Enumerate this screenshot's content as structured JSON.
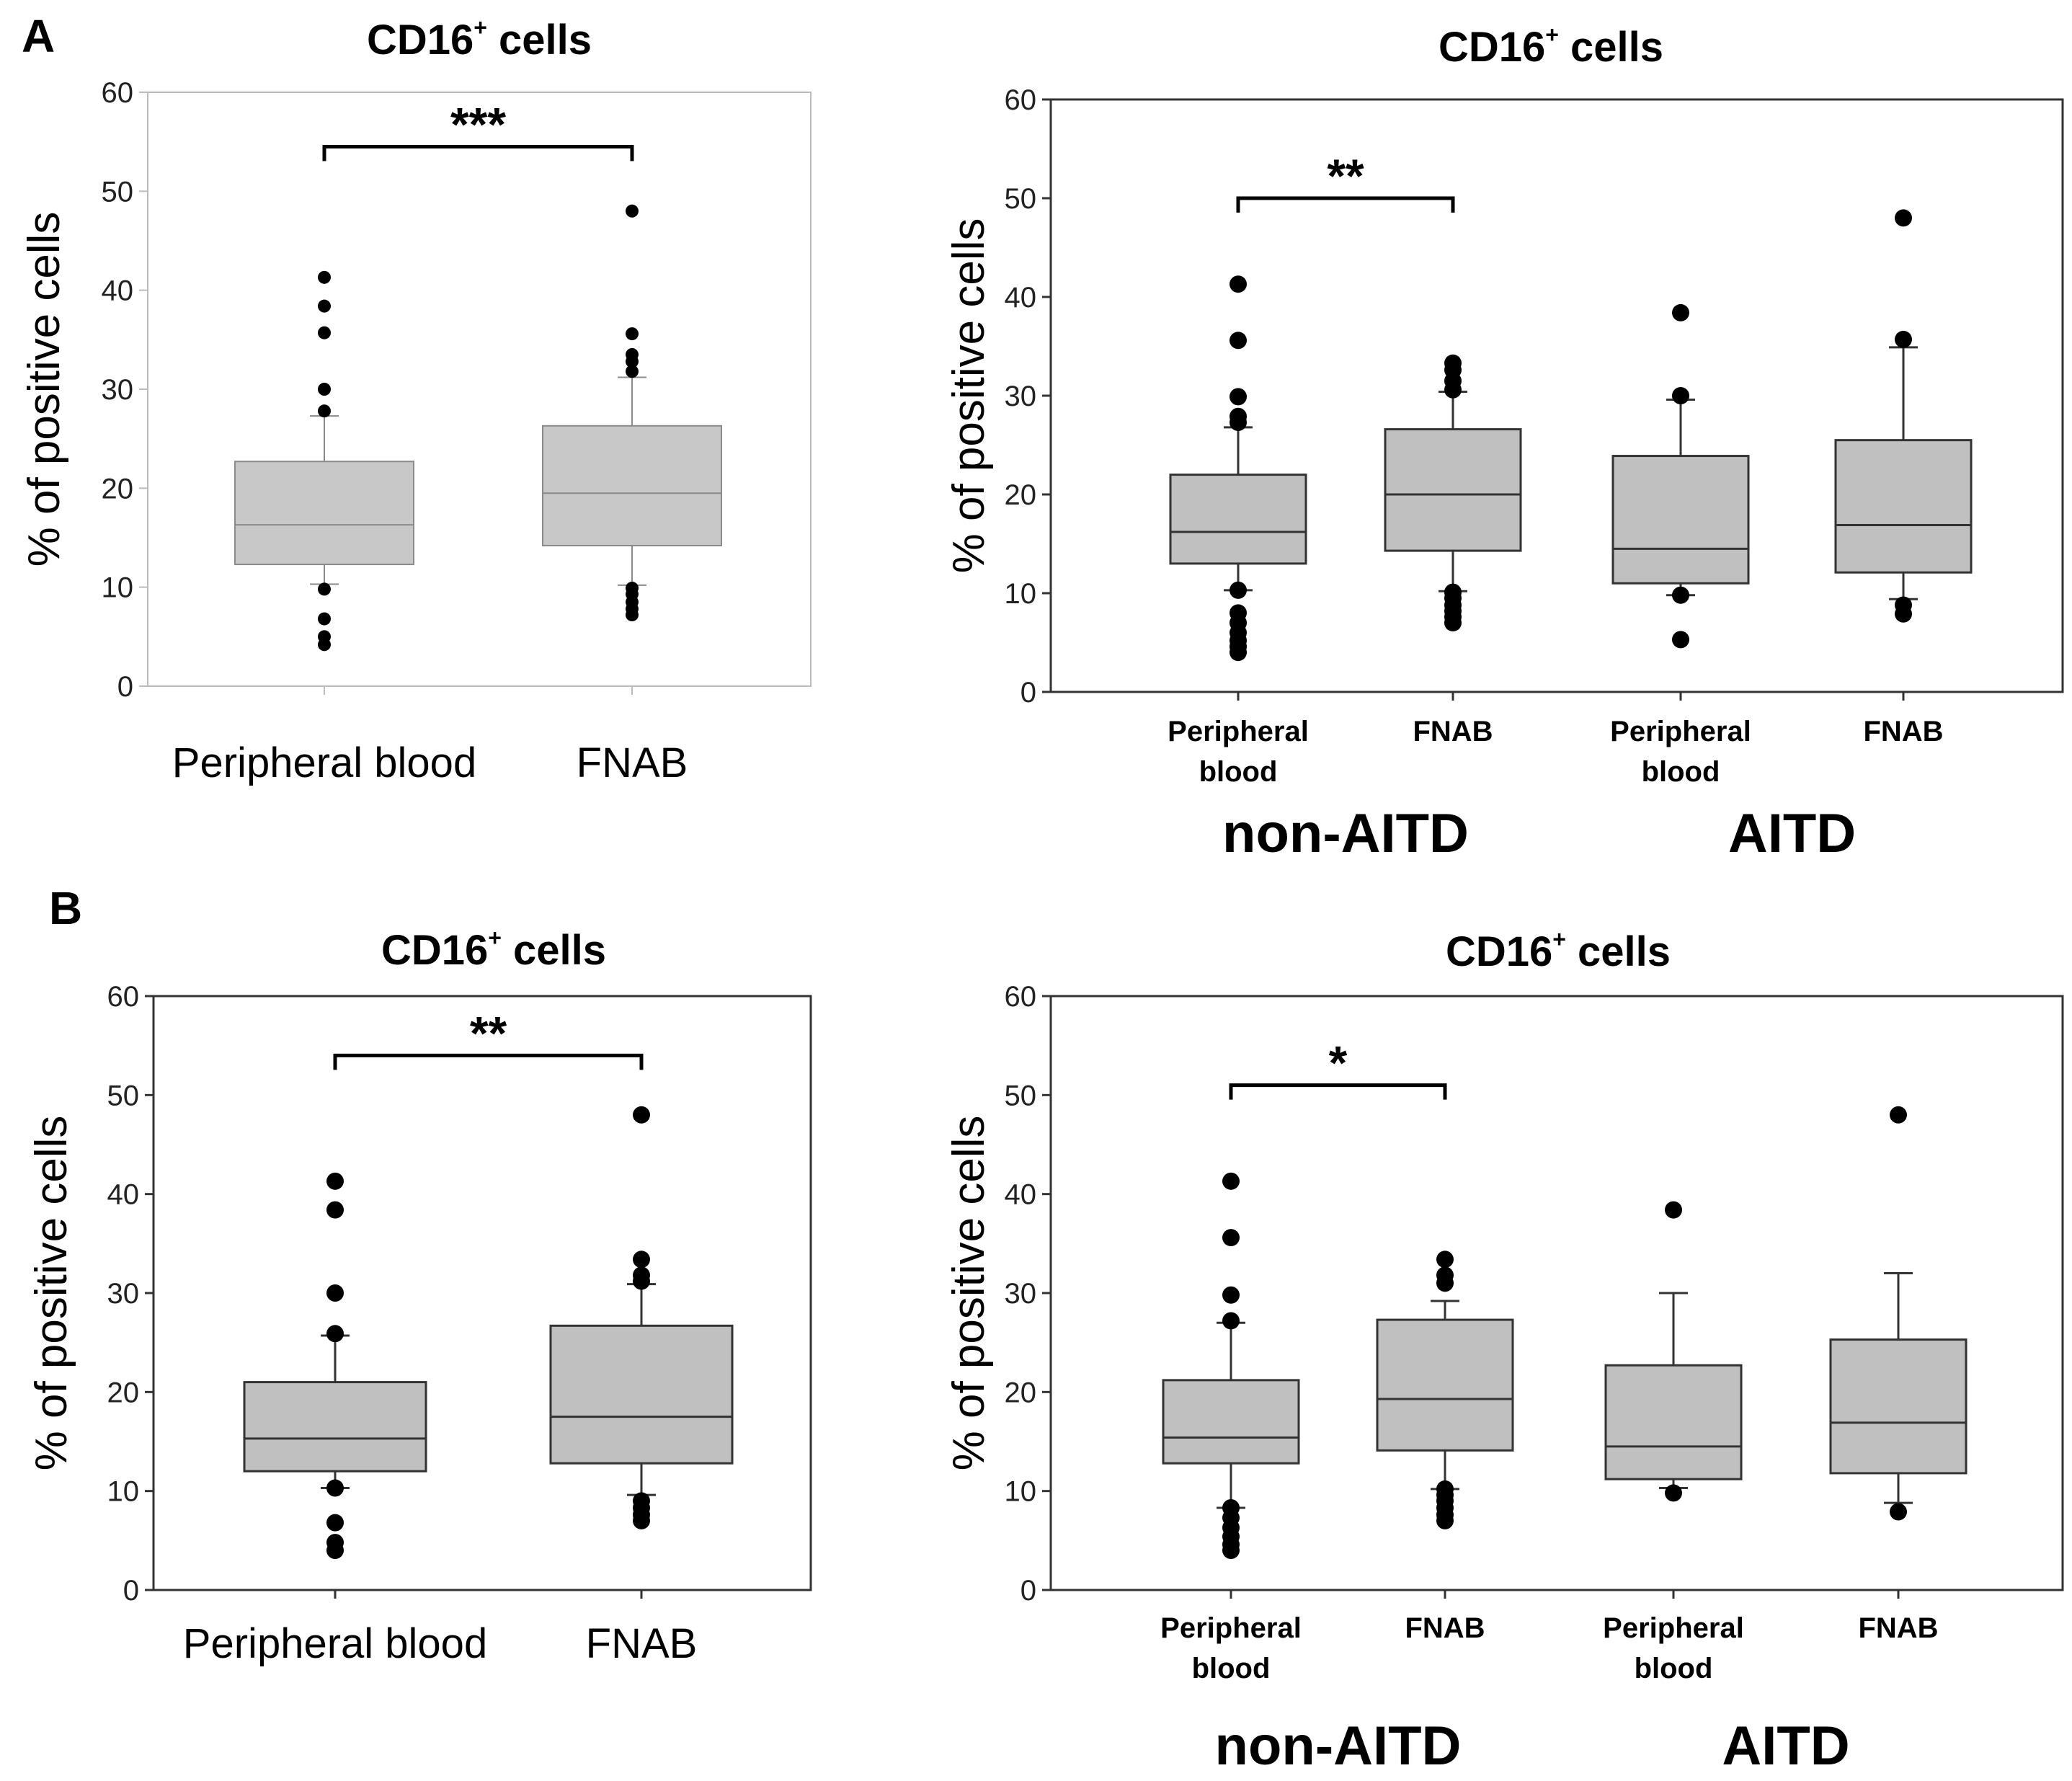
{
  "panel_labels": [
    "A",
    "B"
  ],
  "chart_data": [
    {
      "type": "box",
      "panel": "A",
      "title": "CD16",
      "title_superscript": "+",
      "title_suffix": " cells",
      "ylabel": "% of positive cells",
      "ylim": [
        0,
        60
      ],
      "yticks": [
        0,
        10,
        20,
        30,
        40,
        50,
        60
      ],
      "categories": [
        "Peripheral blood",
        "FNAB"
      ],
      "groups": [],
      "boxes": [
        {
          "label": "Peripheral blood",
          "q1": 12.3,
          "median": 16.3,
          "q3": 22.7,
          "whisker_low": 10.3,
          "whisker_high": 27.3,
          "outliers": [
            4.2,
            5.0,
            6.8,
            9.8,
            27.8,
            30.0,
            35.7,
            38.4,
            41.3
          ]
        },
        {
          "label": "FNAB",
          "q1": 14.2,
          "median": 19.5,
          "q3": 26.3,
          "whisker_low": 10.2,
          "whisker_high": 31.2,
          "outliers": [
            7.2,
            7.8,
            8.5,
            9.3,
            9.9,
            31.8,
            32.8,
            33.5,
            35.6,
            48.0
          ]
        }
      ],
      "significance": [
        {
          "from": 0,
          "to": 1,
          "y": 54.5,
          "label": "***"
        }
      ]
    },
    {
      "type": "box",
      "panel": "A",
      "title": "CD16",
      "title_superscript": "+",
      "title_suffix": " cells",
      "ylabel": "% of positive cells",
      "ylim": [
        0,
        60
      ],
      "yticks": [
        0,
        10,
        20,
        30,
        40,
        50,
        60
      ],
      "categories": [
        [
          "Peripheral",
          "blood"
        ],
        [
          "FNAB"
        ],
        [
          "Peripheral",
          "blood"
        ],
        [
          "FNAB"
        ]
      ],
      "groups": [
        {
          "label": "non-AITD",
          "span": [
            0,
            1
          ]
        },
        {
          "label": "AITD",
          "span": [
            2,
            3
          ]
        }
      ],
      "boxes": [
        {
          "label": "Peripheral blood (non-AITD)",
          "q1": 13.0,
          "median": 16.2,
          "q3": 22.0,
          "whisker_low": 10.3,
          "whisker_high": 26.8,
          "outliers": [
            4.0,
            4.6,
            5.2,
            6.0,
            7.0,
            8.0,
            10.3,
            27.3,
            27.9,
            29.9,
            35.6,
            41.3
          ]
        },
        {
          "label": "FNAB (non-AITD)",
          "q1": 14.3,
          "median": 20.0,
          "q3": 26.6,
          "whisker_low": 10.2,
          "whisker_high": 30.4,
          "outliers": [
            7.0,
            7.6,
            8.2,
            8.8,
            9.5,
            10.1,
            30.6,
            31.5,
            32.6,
            33.3
          ]
        },
        {
          "label": "Peripheral blood (AITD)",
          "q1": 11.0,
          "median": 14.5,
          "q3": 23.9,
          "whisker_low": 9.8,
          "whisker_high": 29.6,
          "outliers": [
            5.3,
            9.8,
            30.0,
            38.4
          ]
        },
        {
          "label": "FNAB (AITD)",
          "q1": 12.1,
          "median": 16.9,
          "q3": 25.5,
          "whisker_low": 9.4,
          "whisker_high": 34.9,
          "outliers": [
            7.9,
            8.8,
            35.7,
            48.0
          ]
        }
      ],
      "significance": [
        {
          "from": 0,
          "to": 1,
          "y": 50.0,
          "label": "**"
        }
      ]
    },
    {
      "type": "box",
      "panel": "B",
      "title": "CD16",
      "title_superscript": "+",
      "title_suffix": " cells",
      "ylabel": "% of positive cells",
      "ylim": [
        0,
        60
      ],
      "yticks": [
        0,
        10,
        20,
        30,
        40,
        50,
        60
      ],
      "categories": [
        "Peripheral blood",
        "FNAB"
      ],
      "groups": [],
      "boxes": [
        {
          "label": "Peripheral blood",
          "q1": 12.0,
          "median": 15.3,
          "q3": 21.0,
          "whisker_low": 10.3,
          "whisker_high": 25.7,
          "outliers": [
            4.0,
            4.8,
            6.8,
            10.3,
            25.9,
            30.0,
            38.4,
            41.3
          ]
        },
        {
          "label": "FNAB",
          "q1": 12.8,
          "median": 17.5,
          "q3": 26.7,
          "whisker_low": 9.6,
          "whisker_high": 30.9,
          "outliers": [
            7.0,
            7.6,
            8.3,
            9.0,
            31.2,
            31.8,
            33.4,
            48.0
          ]
        }
      ],
      "significance": [
        {
          "from": 0,
          "to": 1,
          "y": 54.0,
          "label": "**"
        }
      ]
    },
    {
      "type": "box",
      "panel": "B",
      "title": "CD16",
      "title_superscript": "+",
      "title_suffix": " cells",
      "ylabel": "% of positive cells",
      "ylim": [
        0,
        60
      ],
      "yticks": [
        0,
        10,
        20,
        30,
        40,
        50,
        60
      ],
      "categories": [
        [
          "Peripheral",
          "blood"
        ],
        [
          "FNAB"
        ],
        [
          "Peripheral",
          "blood"
        ],
        [
          "FNAB"
        ]
      ],
      "groups": [
        {
          "label": "non-AITD",
          "span": [
            0,
            1
          ]
        },
        {
          "label": "AITD",
          "span": [
            2,
            3
          ]
        }
      ],
      "boxes": [
        {
          "label": "Peripheral blood (non-AITD)",
          "q1": 12.8,
          "median": 15.4,
          "q3": 21.2,
          "whisker_low": 8.3,
          "whisker_high": 27.0,
          "outliers": [
            4.0,
            4.6,
            5.4,
            6.3,
            7.3,
            8.3,
            27.2,
            29.8,
            35.6,
            41.3
          ]
        },
        {
          "label": "FNAB (non-AITD)",
          "q1": 14.1,
          "median": 19.3,
          "q3": 27.3,
          "whisker_low": 10.2,
          "whisker_high": 29.2,
          "outliers": [
            7.0,
            7.6,
            8.3,
            9.0,
            9.6,
            10.2,
            31.0,
            31.8,
            33.4
          ]
        },
        {
          "label": "Peripheral blood (AITD)",
          "q1": 11.2,
          "median": 14.5,
          "q3": 22.7,
          "whisker_low": 10.3,
          "whisker_high": 30.0,
          "outliers": [
            9.8,
            38.4
          ]
        },
        {
          "label": "FNAB (AITD)",
          "q1": 11.8,
          "median": 16.9,
          "q3": 25.3,
          "whisker_low": 8.8,
          "whisker_high": 32.0,
          "outliers": [
            7.9,
            48.0
          ]
        }
      ],
      "significance": [
        {
          "from": 0,
          "to": 1,
          "y": 51.0,
          "label": "*"
        }
      ]
    }
  ]
}
